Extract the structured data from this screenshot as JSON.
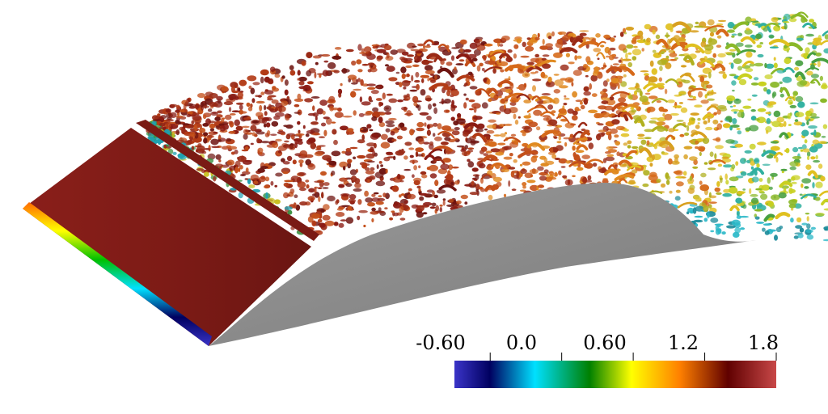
{
  "colorbar": {
    "tick_labels": [
      "-0.60",
      "0.0",
      "0.60",
      "1.2",
      "1.8"
    ],
    "tick_values": [
      -0.6,
      0.0,
      0.6,
      1.2,
      1.8
    ],
    "range": [
      -0.9,
      1.8
    ],
    "colors": [
      "#3a34c8",
      "#000060",
      "#00e0ff",
      "#008000",
      "#ffff00",
      "#ff8000",
      "#600000",
      "#c84848"
    ]
  },
  "visualization": {
    "airfoil_color": "#8a8a8a",
    "surface_color": "#7a1a14"
  }
}
